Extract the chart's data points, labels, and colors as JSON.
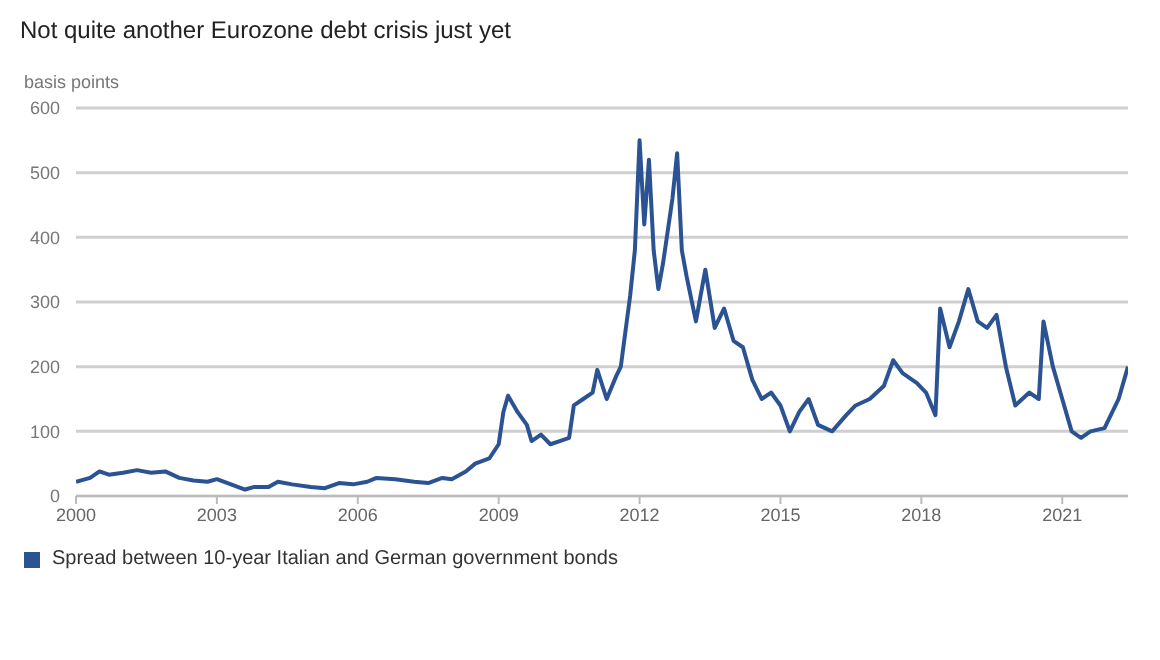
{
  "chart_data": {
    "type": "line",
    "title": "Not quite another Eurozone debt crisis just yet",
    "ylabel": "basis points",
    "x": [
      2000.0,
      2000.3,
      2000.5,
      2000.7,
      2001.0,
      2001.3,
      2001.6,
      2001.9,
      2002.2,
      2002.5,
      2002.8,
      2003.0,
      2003.3,
      2003.6,
      2003.8,
      2004.1,
      2004.3,
      2004.6,
      2005.0,
      2005.3,
      2005.6,
      2005.9,
      2006.2,
      2006.4,
      2006.8,
      2007.2,
      2007.5,
      2007.8,
      2008.0,
      2008.3,
      2008.5,
      2008.8,
      2009.0,
      2009.1,
      2009.2,
      2009.4,
      2009.6,
      2009.7,
      2009.9,
      2010.1,
      2010.3,
      2010.5,
      2010.6,
      2010.8,
      2011.0,
      2011.1,
      2011.3,
      2011.5,
      2011.6,
      2011.8,
      2011.9,
      2012.0,
      2012.1,
      2012.2,
      2012.3,
      2012.4,
      2012.5,
      2012.7,
      2012.8,
      2012.9,
      2013.0,
      2013.2,
      2013.4,
      2013.6,
      2013.8,
      2014.0,
      2014.2,
      2014.4,
      2014.6,
      2014.8,
      2015.0,
      2015.2,
      2015.4,
      2015.6,
      2015.8,
      2016.1,
      2016.4,
      2016.6,
      2016.9,
      2017.2,
      2017.4,
      2017.6,
      2017.9,
      2018.1,
      2018.3,
      2018.4,
      2018.6,
      2018.8,
      2019.0,
      2019.2,
      2019.4,
      2019.6,
      2019.8,
      2020.0,
      2020.3,
      2020.5,
      2020.6,
      2020.8,
      2021.0,
      2021.2,
      2021.4,
      2021.6,
      2021.9,
      2022.0,
      2022.2,
      2022.4
    ],
    "series": [
      {
        "name": "Spread between 10-year Italian and German government bonds",
        "color": "#2b5393",
        "values": [
          22,
          28,
          38,
          33,
          36,
          40,
          36,
          38,
          28,
          24,
          22,
          26,
          18,
          10,
          14,
          14,
          22,
          18,
          14,
          12,
          20,
          18,
          22,
          28,
          26,
          22,
          20,
          28,
          26,
          38,
          50,
          58,
          80,
          130,
          155,
          130,
          110,
          85,
          95,
          80,
          85,
          90,
          140,
          150,
          160,
          195,
          150,
          185,
          200,
          310,
          380,
          550,
          420,
          520,
          380,
          320,
          360,
          460,
          530,
          380,
          340,
          270,
          350,
          260,
          290,
          240,
          230,
          180,
          150,
          160,
          140,
          100,
          130,
          150,
          110,
          100,
          125,
          140,
          150,
          170,
          210,
          190,
          175,
          160,
          125,
          290,
          230,
          270,
          320,
          270,
          260,
          280,
          200,
          140,
          160,
          150,
          270,
          200,
          150,
          100,
          90,
          100,
          105,
          120,
          150,
          200
        ]
      }
    ],
    "xlim": [
      2000,
      2022.4
    ],
    "xticks": [
      2000,
      2003,
      2006,
      2009,
      2012,
      2015,
      2018,
      2021
    ],
    "ylim": [
      0,
      600
    ],
    "yticks": [
      0,
      100,
      200,
      300,
      400,
      500,
      600
    ],
    "grid": "y",
    "legend": "bottom left",
    "marker": "none",
    "line_style": "solid"
  }
}
